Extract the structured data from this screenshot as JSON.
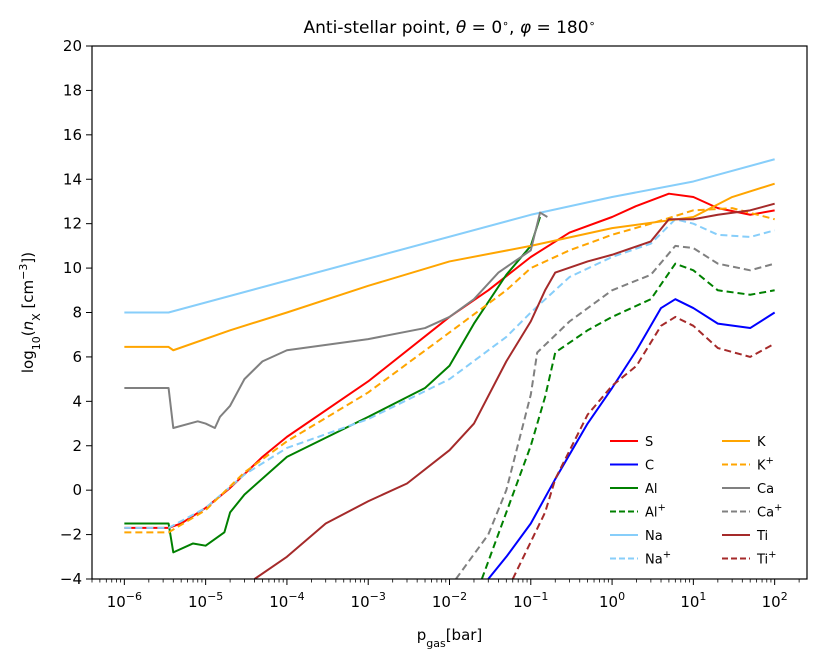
{
  "chart_data": {
    "type": "line",
    "title": "Anti-stellar point, θ = 0°, φ = 180°",
    "xlabel": "p_gas[bar]",
    "ylabel": "log10(n_X [cm^-3])",
    "xscale": "log",
    "xlim": [
      4e-07,
      250
    ],
    "ylim": [
      -4,
      20
    ],
    "grid": false,
    "legend": "lower-right",
    "x_ticks": [
      {
        "value": 1e-06,
        "base": "10",
        "exp": "−6"
      },
      {
        "value": 1e-05,
        "base": "10",
        "exp": "−5"
      },
      {
        "value": 0.0001,
        "base": "10",
        "exp": "−4"
      },
      {
        "value": 0.001,
        "base": "10",
        "exp": "−3"
      },
      {
        "value": 0.01,
        "base": "10",
        "exp": "−2"
      },
      {
        "value": 0.1,
        "base": "10",
        "exp": "−1"
      },
      {
        "value": 1,
        "base": "10",
        "exp": "0"
      },
      {
        "value": 10,
        "base": "10",
        "exp": "1"
      },
      {
        "value": 100,
        "base": "10",
        "exp": "2"
      }
    ],
    "y_ticks": [
      {
        "value": -4,
        "label": "−4"
      },
      {
        "value": -2,
        "label": "−2"
      },
      {
        "value": 0,
        "label": "0"
      },
      {
        "value": 2,
        "label": "2"
      },
      {
        "value": 4,
        "label": "4"
      },
      {
        "value": 6,
        "label": "6"
      },
      {
        "value": 8,
        "label": "8"
      },
      {
        "value": 10,
        "label": "10"
      },
      {
        "value": 12,
        "label": "12"
      },
      {
        "value": 14,
        "label": "14"
      },
      {
        "value": 16,
        "label": "16"
      },
      {
        "value": 18,
        "label": "18"
      },
      {
        "value": 20,
        "label": "20"
      }
    ],
    "series": [
      {
        "name": "S",
        "sup": "",
        "color": "#ff0000",
        "dash": false,
        "points": [
          [
            1e-06,
            -1.7
          ],
          [
            3.5e-06,
            -1.7
          ],
          [
            5e-06,
            -1.5
          ],
          [
            1e-05,
            -0.8
          ],
          [
            2e-05,
            0.1
          ],
          [
            5e-05,
            1.5
          ],
          [
            0.0001,
            2.4
          ],
          [
            0.001,
            4.9
          ],
          [
            0.01,
            7.8
          ],
          [
            0.03,
            9.0
          ],
          [
            0.1,
            10.5
          ],
          [
            0.3,
            11.6
          ],
          [
            1,
            12.3
          ],
          [
            2,
            12.8
          ],
          [
            5,
            13.35
          ],
          [
            10,
            13.2
          ],
          [
            20,
            12.7
          ],
          [
            50,
            12.4
          ],
          [
            100,
            12.6
          ]
        ]
      },
      {
        "name": "C",
        "sup": "",
        "color": "#0000ff",
        "dash": false,
        "points": [
          [
            0.03,
            -4
          ],
          [
            0.05,
            -3
          ],
          [
            0.1,
            -1.5
          ],
          [
            0.2,
            0.5
          ],
          [
            0.5,
            3.0
          ],
          [
            1,
            4.6
          ],
          [
            2,
            6.3
          ],
          [
            4,
            8.2
          ],
          [
            6,
            8.6
          ],
          [
            10,
            8.2
          ],
          [
            20,
            7.5
          ],
          [
            50,
            7.3
          ],
          [
            100,
            8.0
          ]
        ]
      },
      {
        "name": "Al",
        "sup": "",
        "color": "#008000",
        "dash": false,
        "points": [
          [
            1e-06,
            -1.5
          ],
          [
            3.5e-06,
            -1.5
          ],
          [
            4e-06,
            -2.8
          ],
          [
            7e-06,
            -2.4
          ],
          [
            1e-05,
            -2.5
          ],
          [
            1.7e-05,
            -1.9
          ],
          [
            2e-05,
            -1.0
          ],
          [
            3e-05,
            -0.2
          ],
          [
            0.0001,
            1.5
          ],
          [
            0.001,
            3.3
          ],
          [
            0.005,
            4.6
          ],
          [
            0.01,
            5.6
          ],
          [
            0.02,
            7.5
          ],
          [
            0.05,
            9.7
          ],
          [
            0.1,
            11.0
          ],
          [
            0.13,
            12.3
          ]
        ]
      },
      {
        "name": "Al",
        "sup": "+",
        "color": "#008000",
        "dash": true,
        "points": [
          [
            0.025,
            -4
          ],
          [
            0.05,
            -1.0
          ],
          [
            0.1,
            2.0
          ],
          [
            0.15,
            4.2
          ],
          [
            0.2,
            6.2
          ],
          [
            0.5,
            7.2
          ],
          [
            1,
            7.8
          ],
          [
            3,
            8.6
          ],
          [
            6,
            10.2
          ],
          [
            10,
            9.9
          ],
          [
            20,
            9.0
          ],
          [
            50,
            8.8
          ],
          [
            100,
            9.0
          ]
        ]
      },
      {
        "name": "Na",
        "sup": "",
        "color": "#87cefa",
        "dash": false,
        "points": [
          [
            1e-06,
            8.0
          ],
          [
            3.5e-06,
            8.0
          ],
          [
            0.1,
            12.4
          ],
          [
            1,
            13.2
          ],
          [
            10,
            13.9
          ],
          [
            100,
            14.9
          ]
        ]
      },
      {
        "name": "Na",
        "sup": "+",
        "color": "#87cefa",
        "dash": true,
        "points": [
          [
            1e-06,
            -1.7
          ],
          [
            3.5e-06,
            -1.7
          ],
          [
            1e-05,
            -0.8
          ],
          [
            3e-05,
            0.7
          ],
          [
            0.0001,
            1.9
          ],
          [
            0.001,
            3.2
          ],
          [
            0.01,
            5.0
          ],
          [
            0.05,
            6.9
          ],
          [
            0.1,
            8.0
          ],
          [
            0.3,
            9.6
          ],
          [
            1,
            10.5
          ],
          [
            3,
            11.1
          ],
          [
            6,
            12.2
          ],
          [
            10,
            12.0
          ],
          [
            20,
            11.5
          ],
          [
            50,
            11.4
          ],
          [
            100,
            11.7
          ]
        ]
      },
      {
        "name": "K",
        "sup": "",
        "color": "#ffa500",
        "dash": false,
        "points": [
          [
            1e-06,
            6.45
          ],
          [
            3.5e-06,
            6.45
          ],
          [
            4e-06,
            6.3
          ],
          [
            2e-05,
            7.2
          ],
          [
            0.0001,
            8.0
          ],
          [
            0.001,
            9.2
          ],
          [
            0.01,
            10.3
          ],
          [
            0.1,
            11.0
          ],
          [
            1,
            11.8
          ],
          [
            10,
            12.3
          ],
          [
            30,
            13.2
          ],
          [
            100,
            13.8
          ]
        ]
      },
      {
        "name": "K",
        "sup": "+",
        "color": "#ffa500",
        "dash": true,
        "points": [
          [
            1e-06,
            -1.9
          ],
          [
            3.5e-06,
            -1.9
          ],
          [
            1e-05,
            -0.9
          ],
          [
            3e-05,
            0.8
          ],
          [
            0.0001,
            2.2
          ],
          [
            0.001,
            4.4
          ],
          [
            0.01,
            7.1
          ],
          [
            0.05,
            9.0
          ],
          [
            0.1,
            10.0
          ],
          [
            0.3,
            10.8
          ],
          [
            1,
            11.5
          ],
          [
            3,
            12.0
          ],
          [
            10,
            12.6
          ],
          [
            30,
            12.7
          ],
          [
            100,
            12.2
          ]
        ]
      },
      {
        "name": "Ca",
        "sup": "",
        "color": "#808080",
        "dash": false,
        "points": [
          [
            1e-06,
            4.6
          ],
          [
            3.5e-06,
            4.6
          ],
          [
            4e-06,
            2.8
          ],
          [
            8e-06,
            3.1
          ],
          [
            1e-05,
            3.0
          ],
          [
            1.3e-05,
            2.8
          ],
          [
            1.5e-05,
            3.3
          ],
          [
            2e-05,
            3.8
          ],
          [
            3e-05,
            5.0
          ],
          [
            5e-05,
            5.8
          ],
          [
            0.0001,
            6.3
          ],
          [
            0.001,
            6.8
          ],
          [
            0.005,
            7.3
          ],
          [
            0.01,
            7.8
          ],
          [
            0.02,
            8.6
          ],
          [
            0.04,
            9.8
          ],
          [
            0.1,
            10.8
          ],
          [
            0.13,
            12.5
          ],
          [
            0.16,
            12.3
          ]
        ]
      },
      {
        "name": "Ca",
        "sup": "+",
        "color": "#808080",
        "dash": true,
        "points": [
          [
            0.012,
            -4
          ],
          [
            0.03,
            -2.0
          ],
          [
            0.05,
            0.0
          ],
          [
            0.1,
            4.3
          ],
          [
            0.12,
            6.2
          ],
          [
            0.3,
            7.6
          ],
          [
            1,
            9.0
          ],
          [
            3,
            9.7
          ],
          [
            6,
            11.0
          ],
          [
            10,
            10.9
          ],
          [
            20,
            10.2
          ],
          [
            50,
            9.9
          ],
          [
            100,
            10.2
          ]
        ]
      },
      {
        "name": "Ti",
        "sup": "",
        "color": "#a52a2a",
        "dash": false,
        "points": [
          [
            4e-05,
            -4
          ],
          [
            0.0001,
            -3.0
          ],
          [
            0.0003,
            -1.5
          ],
          [
            0.001,
            -0.5
          ],
          [
            0.003,
            0.3
          ],
          [
            0.01,
            1.8
          ],
          [
            0.02,
            3.0
          ],
          [
            0.05,
            5.8
          ],
          [
            0.1,
            7.6
          ],
          [
            0.15,
            9.0
          ],
          [
            0.2,
            9.8
          ],
          [
            0.5,
            10.3
          ],
          [
            1,
            10.6
          ],
          [
            3,
            11.2
          ],
          [
            5,
            12.2
          ],
          [
            10,
            12.2
          ],
          [
            20,
            12.4
          ],
          [
            50,
            12.6
          ],
          [
            100,
            12.9
          ]
        ]
      },
      {
        "name": "Ti",
        "sup": "+",
        "color": "#a52a2a",
        "dash": true,
        "points": [
          [
            0.06,
            -4
          ],
          [
            0.15,
            -1.0
          ],
          [
            0.2,
            0.5
          ],
          [
            0.5,
            3.4
          ],
          [
            1,
            4.7
          ],
          [
            2,
            5.6
          ],
          [
            4,
            7.4
          ],
          [
            6,
            7.8
          ],
          [
            10,
            7.4
          ],
          [
            20,
            6.4
          ],
          [
            50,
            6.0
          ],
          [
            100,
            6.6
          ]
        ]
      }
    ]
  }
}
